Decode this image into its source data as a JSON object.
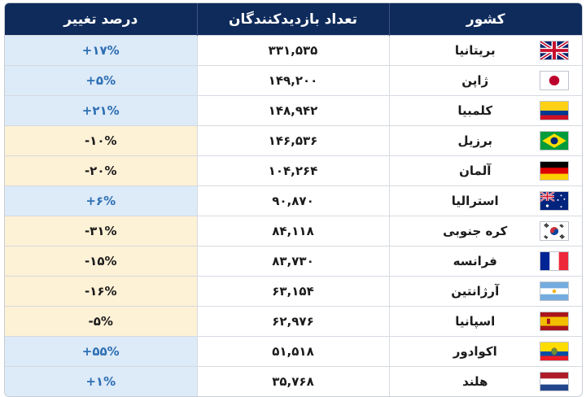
{
  "table": {
    "headers": {
      "country": "کشور",
      "visitors": "تعداد بازدیدکنندگان",
      "change": "درصد تغییر"
    },
    "rows": [
      {
        "country": "بریتانیا",
        "flag": "uk-flag-icon",
        "visitors": "۳۳۱,۵۳۵",
        "change": "+۱۷%",
        "trend": "positive"
      },
      {
        "country": "ژاپن",
        "flag": "japan-flag-icon",
        "visitors": "۱۴۹,۲۰۰",
        "change": "+۵%",
        "trend": "positive"
      },
      {
        "country": "کلمبیا",
        "flag": "colombia-flag-icon",
        "visitors": "۱۴۸,۹۴۲",
        "change": "+۲۱%",
        "trend": "positive"
      },
      {
        "country": "برزیل",
        "flag": "brazil-flag-icon",
        "visitors": "۱۴۶,۵۳۶",
        "change": "-۱۰%",
        "trend": "negative"
      },
      {
        "country": "آلمان",
        "flag": "germany-flag-icon",
        "visitors": "۱۰۴,۲۶۴",
        "change": "-۲۰%",
        "trend": "negative"
      },
      {
        "country": "استرالیا",
        "flag": "australia-flag-icon",
        "visitors": "۹۰,۸۷۰",
        "change": "+۶%",
        "trend": "positive"
      },
      {
        "country": "کره جنوبی",
        "flag": "south-korea-flag-icon",
        "visitors": "۸۴,۱۱۸",
        "change": "-۳۱%",
        "trend": "negative"
      },
      {
        "country": "فرانسه",
        "flag": "france-flag-icon",
        "visitors": "۸۳,۷۳۰",
        "change": "-۱۵%",
        "trend": "negative"
      },
      {
        "country": "آرژانتین",
        "flag": "argentina-flag-icon",
        "visitors": "۶۳,۱۵۴",
        "change": "-۱۶%",
        "trend": "negative"
      },
      {
        "country": "اسپانیا",
        "flag": "spain-flag-icon",
        "visitors": "۶۲,۹۷۶",
        "change": "-۵%",
        "trend": "negative"
      },
      {
        "country": "اکوادور",
        "flag": "ecuador-flag-icon",
        "visitors": "۵۱,۵۱۸",
        "change": "+۵۵%",
        "trend": "positive"
      },
      {
        "country": "هلند",
        "flag": "netherlands-flag-icon",
        "visitors": "۳۵,۷۶۸",
        "change": "+۱%",
        "trend": "positive"
      }
    ]
  },
  "colors": {
    "header_bg": "#0f2b5b",
    "positive_bg": "#ddeaf8",
    "positive_text": "#2d6fb3",
    "negative_bg": "#fdf1d6"
  }
}
